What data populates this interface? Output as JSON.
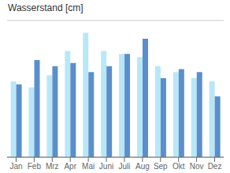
{
  "chart_data": {
    "type": "bar",
    "title": "Wasserstand [cm]",
    "categories": [
      "Jan",
      "Feb",
      "Mrz",
      "Apr",
      "Mai",
      "Juni",
      "Juli",
      "Aug",
      "Sep",
      "Okt",
      "Nov",
      "Dez"
    ],
    "series": [
      {
        "color": "#b8e8f8",
        "values": [
          50,
          46,
          54,
          70,
          82,
          70,
          68,
          66,
          60,
          56,
          52,
          50
        ]
      },
      {
        "color": "#5b8fcc",
        "values": [
          48,
          64,
          60,
          62,
          56,
          60,
          68,
          78,
          52,
          58,
          56,
          40
        ]
      }
    ],
    "ylim": [
      0,
      90
    ],
    "yticks": [
      0,
      11.25,
      22.5,
      33.75,
      45,
      56.25,
      67.5,
      78.75,
      90
    ],
    "grid": true,
    "tick_labels": "x"
  }
}
